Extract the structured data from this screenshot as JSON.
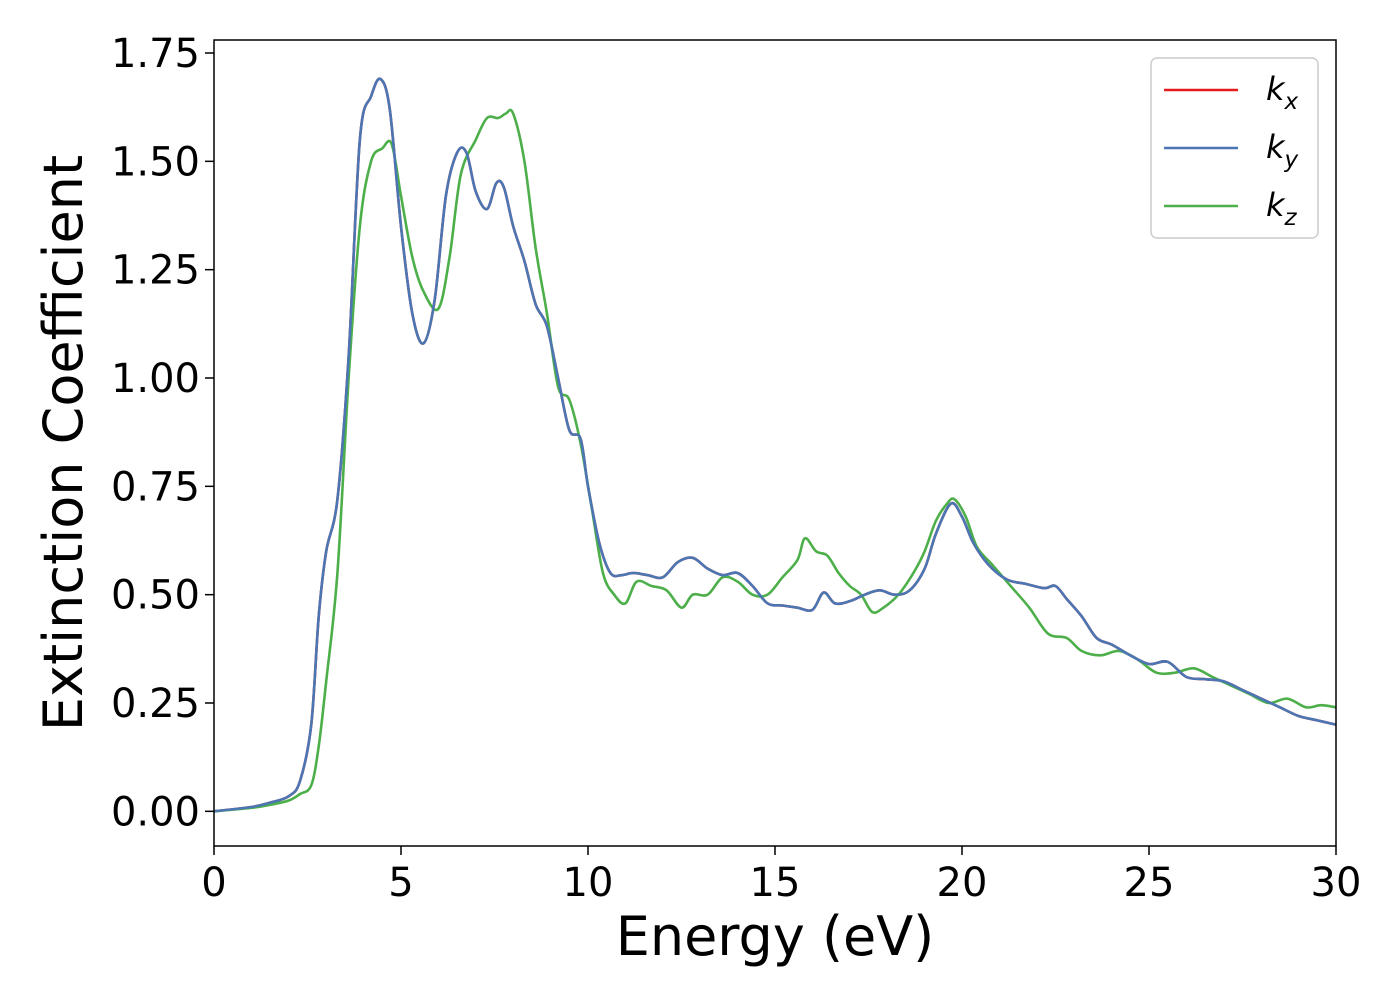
{
  "chart_data": {
    "type": "line",
    "xlabel": "Energy (eV)",
    "ylabel": "Extinction Coefficient",
    "xlim": [
      0,
      30
    ],
    "ylim": [
      -0.08,
      1.78
    ],
    "xticks": [
      "0",
      "5",
      "10",
      "15",
      "20",
      "25",
      "30"
    ],
    "yticks": [
      "0.00",
      "0.25",
      "0.50",
      "0.75",
      "1.00",
      "1.25",
      "1.50",
      "1.75"
    ],
    "grid": false,
    "legend_position": "top-right",
    "series": [
      {
        "name": "k_x",
        "legend_base": "k",
        "legend_sub": "x",
        "color": "#e41a1c",
        "x": [
          0,
          1,
          1.5,
          2,
          2.3,
          2.6,
          2.8,
          3.0,
          3.3,
          3.6,
          3.9,
          4.2,
          4.45,
          4.7,
          5.0,
          5.3,
          5.6,
          5.9,
          6.2,
          6.5,
          6.75,
          7.0,
          7.3,
          7.55,
          7.75,
          8.0,
          8.3,
          8.6,
          8.9,
          9.2,
          9.5,
          9.8,
          10.0,
          10.3,
          10.6,
          10.9,
          11.2,
          11.6,
          12.0,
          12.4,
          12.8,
          13.2,
          13.6,
          14.0,
          14.4,
          14.8,
          15.2,
          15.6,
          16.0,
          16.3,
          16.6,
          17.0,
          17.4,
          17.8,
          18.2,
          18.6,
          19.0,
          19.3,
          19.7,
          20.0,
          20.3,
          20.7,
          21.2,
          21.7,
          22.2,
          22.5,
          22.8,
          23.2,
          23.6,
          24.0,
          24.5,
          25.0,
          25.5,
          26.0,
          26.5,
          27.0,
          27.5,
          28.0,
          28.5,
          29.0,
          29.5,
          30.0
        ],
        "y": [
          0.0,
          0.01,
          0.02,
          0.035,
          0.07,
          0.2,
          0.45,
          0.6,
          0.72,
          1.05,
          1.55,
          1.65,
          1.69,
          1.62,
          1.35,
          1.15,
          1.08,
          1.18,
          1.42,
          1.52,
          1.52,
          1.43,
          1.39,
          1.45,
          1.44,
          1.35,
          1.27,
          1.17,
          1.12,
          1.0,
          0.88,
          0.86,
          0.75,
          0.62,
          0.55,
          0.545,
          0.55,
          0.545,
          0.54,
          0.575,
          0.585,
          0.56,
          0.545,
          0.55,
          0.52,
          0.48,
          0.475,
          0.47,
          0.465,
          0.505,
          0.48,
          0.485,
          0.5,
          0.51,
          0.5,
          0.51,
          0.56,
          0.64,
          0.71,
          0.68,
          0.62,
          0.57,
          0.535,
          0.525,
          0.515,
          0.52,
          0.49,
          0.45,
          0.4,
          0.385,
          0.36,
          0.34,
          0.345,
          0.31,
          0.305,
          0.3,
          0.28,
          0.26,
          0.24,
          0.22,
          0.21,
          0.2
        ]
      },
      {
        "name": "k_y",
        "legend_base": "k",
        "legend_sub": "y",
        "color": "#4a76b4",
        "x": [
          0,
          1,
          1.5,
          2,
          2.3,
          2.6,
          2.8,
          3.0,
          3.3,
          3.6,
          3.9,
          4.2,
          4.45,
          4.7,
          5.0,
          5.3,
          5.6,
          5.9,
          6.2,
          6.5,
          6.75,
          7.0,
          7.3,
          7.55,
          7.75,
          8.0,
          8.3,
          8.6,
          8.9,
          9.2,
          9.5,
          9.8,
          10.0,
          10.3,
          10.6,
          10.9,
          11.2,
          11.6,
          12.0,
          12.4,
          12.8,
          13.2,
          13.6,
          14.0,
          14.4,
          14.8,
          15.2,
          15.6,
          16.0,
          16.3,
          16.6,
          17.0,
          17.4,
          17.8,
          18.2,
          18.6,
          19.0,
          19.3,
          19.7,
          20.0,
          20.3,
          20.7,
          21.2,
          21.7,
          22.2,
          22.5,
          22.8,
          23.2,
          23.6,
          24.0,
          24.5,
          25.0,
          25.5,
          26.0,
          26.5,
          27.0,
          27.5,
          28.0,
          28.5,
          29.0,
          29.5,
          30.0
        ],
        "y": [
          0.0,
          0.01,
          0.02,
          0.035,
          0.07,
          0.2,
          0.45,
          0.6,
          0.72,
          1.05,
          1.55,
          1.65,
          1.69,
          1.62,
          1.35,
          1.15,
          1.08,
          1.18,
          1.42,
          1.52,
          1.52,
          1.43,
          1.39,
          1.45,
          1.44,
          1.35,
          1.27,
          1.17,
          1.12,
          1.0,
          0.88,
          0.86,
          0.75,
          0.62,
          0.55,
          0.545,
          0.55,
          0.545,
          0.54,
          0.575,
          0.585,
          0.56,
          0.545,
          0.55,
          0.52,
          0.48,
          0.475,
          0.47,
          0.465,
          0.505,
          0.48,
          0.485,
          0.5,
          0.51,
          0.5,
          0.51,
          0.56,
          0.64,
          0.71,
          0.68,
          0.62,
          0.57,
          0.535,
          0.525,
          0.515,
          0.52,
          0.49,
          0.45,
          0.4,
          0.385,
          0.36,
          0.34,
          0.345,
          0.31,
          0.305,
          0.3,
          0.28,
          0.26,
          0.24,
          0.22,
          0.21,
          0.2
        ]
      },
      {
        "name": "k_z",
        "legend_base": "k",
        "legend_sub": "z",
        "color": "#4daf4a",
        "x": [
          0,
          1,
          1.5,
          2,
          2.3,
          2.6,
          2.8,
          3.0,
          3.3,
          3.6,
          3.9,
          4.2,
          4.5,
          4.75,
          5.0,
          5.3,
          5.6,
          6.0,
          6.3,
          6.6,
          7.0,
          7.3,
          7.6,
          7.8,
          8.0,
          8.3,
          8.6,
          8.9,
          9.2,
          9.5,
          9.8,
          10.1,
          10.4,
          10.7,
          11.0,
          11.3,
          11.7,
          12.1,
          12.5,
          12.8,
          13.2,
          13.6,
          14.0,
          14.4,
          14.8,
          15.2,
          15.6,
          15.8,
          16.1,
          16.4,
          16.7,
          17.0,
          17.3,
          17.6,
          17.9,
          18.3,
          18.7,
          19.0,
          19.3,
          19.6,
          19.8,
          20.1,
          20.4,
          20.8,
          21.3,
          21.8,
          22.3,
          22.8,
          23.2,
          23.7,
          24.2,
          24.7,
          25.2,
          25.7,
          26.2,
          26.7,
          27.2,
          27.7,
          28.2,
          28.7,
          29.2,
          29.6,
          30.0
        ],
        "y": [
          0.0,
          0.008,
          0.015,
          0.025,
          0.04,
          0.06,
          0.15,
          0.3,
          0.55,
          1.0,
          1.35,
          1.5,
          1.53,
          1.54,
          1.42,
          1.28,
          1.2,
          1.16,
          1.28,
          1.47,
          1.55,
          1.6,
          1.6,
          1.61,
          1.61,
          1.5,
          1.3,
          1.15,
          0.98,
          0.95,
          0.85,
          0.7,
          0.55,
          0.5,
          0.48,
          0.53,
          0.52,
          0.51,
          0.47,
          0.5,
          0.5,
          0.54,
          0.53,
          0.5,
          0.5,
          0.54,
          0.58,
          0.63,
          0.6,
          0.59,
          0.55,
          0.52,
          0.5,
          0.46,
          0.47,
          0.5,
          0.55,
          0.6,
          0.67,
          0.71,
          0.72,
          0.68,
          0.61,
          0.57,
          0.52,
          0.47,
          0.41,
          0.4,
          0.37,
          0.36,
          0.37,
          0.35,
          0.32,
          0.32,
          0.33,
          0.31,
          0.29,
          0.27,
          0.25,
          0.26,
          0.24,
          0.245,
          0.24
        ]
      }
    ]
  }
}
